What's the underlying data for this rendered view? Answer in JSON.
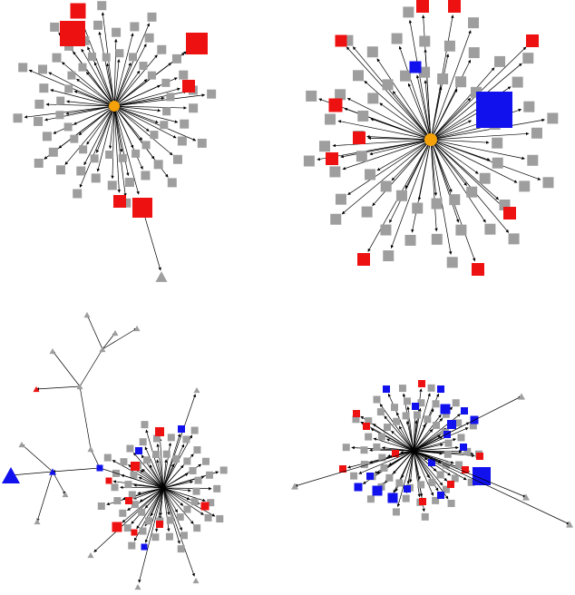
{
  "colors": {
    "background": "#ffffff",
    "edge": "#000000",
    "gray": "#9e9e9e",
    "red": "#ee1111",
    "blue": "#1111ee",
    "orange": "#f5a20a",
    "black": "#000000"
  },
  "panels": [
    {
      "id": "top-left",
      "center": {
        "name": "hub",
        "shape": "circle",
        "color": "orange"
      },
      "ring_count": 64,
      "ring_color": "gray",
      "highlight_nodes": 6,
      "extra_nodes": 1
    },
    {
      "id": "top-right",
      "center": {
        "name": "hub",
        "shape": "circle",
        "color": "orange"
      },
      "ring_count": 58,
      "ring_color": "gray",
      "highlight_nodes": 11,
      "extra_nodes": 0
    },
    {
      "id": "bottom-left",
      "center": {
        "name": "hub",
        "shape": "dot",
        "color": "black"
      },
      "ring_count": 50,
      "ring_color": "gray",
      "highlight_nodes": 18,
      "extra_nodes": 14
    },
    {
      "id": "bottom-right",
      "center": {
        "name": "hub",
        "shape": "dot",
        "color": "black"
      },
      "ring_count": 56,
      "ring_color": "gray",
      "highlight_nodes": 26,
      "extra_nodes": 4
    }
  ]
}
